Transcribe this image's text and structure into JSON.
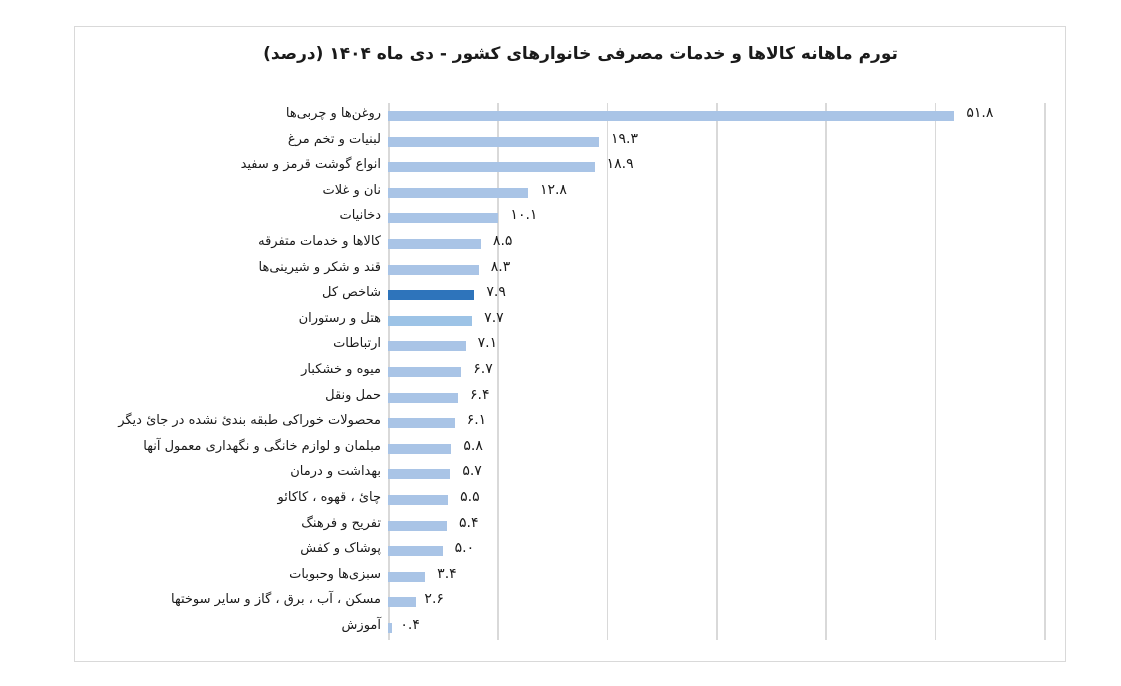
{
  "chart_data": {
    "type": "bar",
    "orientation": "horizontal",
    "title": "تورم ماهانه کالاها و خدمات مصرفی خانوارهای کشور - دی ماه ۱۴۰۴ (درصد)",
    "xlabel": "",
    "ylabel": "",
    "xlim": [
      0,
      60
    ],
    "grid": true,
    "legend": null,
    "categories": [
      "روغن‌ها و چربی‌ها",
      "لبنیات و تخم مرغ",
      "انواع گوشت قرمز و سفید",
      "نان و غلات",
      "دخانیات",
      "کالاها و خدمات متفرقه",
      "قند و شکر و شیرینی‌ها",
      "شاخص کل",
      "هتل و رستوران",
      "ارتباطات",
      "میوه و خشکبار",
      "حمل ونقل",
      "محصولات خوراکی طبقه بندیٔ نشده در جایٔ دیگر",
      "مبلمان و لوازم خانگی و نگهداری معمول آنها",
      "بهداشت و درمان",
      "چایٔ ، قهوه ، کاکائو",
      "تفریح و فرهنگ",
      "پوشاک و کفش",
      "سبزی‌ها وحبوبات",
      "مسکن ، آب ، برق ، گاز و سایر سوختها",
      "آموزش"
    ],
    "values": [
      51.8,
      19.3,
      18.9,
      12.8,
      10.1,
      8.5,
      8.3,
      7.9,
      7.7,
      7.1,
      6.7,
      6.4,
      6.1,
      5.8,
      5.7,
      5.5,
      5.4,
      5.0,
      3.4,
      2.6,
      0.4
    ],
    "value_labels": [
      "۵۱.۸",
      "۱۹.۳",
      "۱۸.۹",
      "۱۲.۸",
      "۱۰.۱",
      "۸.۵",
      "۸.۳",
      "۷.۹",
      "۷.۷",
      "۷.۱",
      "۶.۷",
      "۶.۴",
      "۶.۱",
      "۵.۸",
      "۵.۷",
      "۵.۵",
      "۵.۴",
      "۵.۰",
      "۳.۴",
      "۲.۶",
      "۰.۴"
    ],
    "highlight_index": 7,
    "colors": {
      "bar": "#a9c4e6",
      "highlight": "#2e74bb",
      "grid": "#d9d9d9"
    }
  }
}
